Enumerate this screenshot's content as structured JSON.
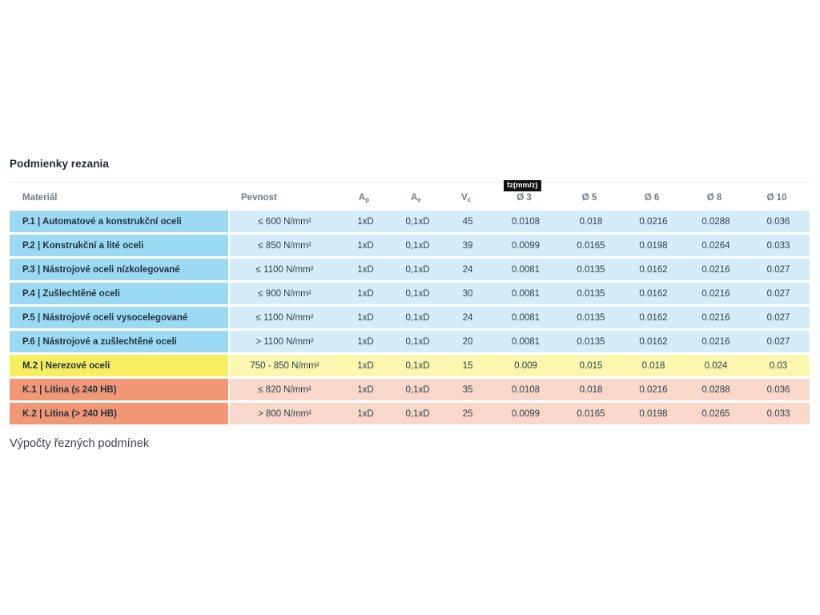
{
  "page": {
    "title": "Podmienky rezania",
    "footer_text": "Výpočty řezných podmínek"
  },
  "table": {
    "fz_tag": "fz(mm/z)",
    "headers": [
      {
        "label": "Materiál",
        "sub": ""
      },
      {
        "label": "Pevnost",
        "sub": ""
      },
      {
        "label": "A",
        "sub": "p"
      },
      {
        "label": "A",
        "sub": "e"
      },
      {
        "label": "V",
        "sub": "c"
      },
      {
        "label": "Ø 3",
        "sub": ""
      },
      {
        "label": "Ø 5",
        "sub": ""
      },
      {
        "label": "Ø 6",
        "sub": ""
      },
      {
        "label": "Ø 8",
        "sub": ""
      },
      {
        "label": "Ø 10",
        "sub": ""
      }
    ],
    "rows": [
      {
        "theme": "blue",
        "material": "P.1 | Automatové a konstrukční oceli",
        "values": [
          "≤ 600 N/mm²",
          "1xD",
          "0,1xD",
          "45",
          "0.0108",
          "0.018",
          "0.0216",
          "0.0288",
          "0.036"
        ]
      },
      {
        "theme": "blue",
        "material": "P.2 | Konstrukční a lité oceli",
        "values": [
          "≤ 850 N/mm²",
          "1xD",
          "0,1xD",
          "39",
          "0.0099",
          "0.0165",
          "0.0198",
          "0.0264",
          "0.033"
        ]
      },
      {
        "theme": "blue",
        "material": "P.3 | Nástrojové oceli nízkolegované",
        "values": [
          "≤ 1100 N/mm²",
          "1xD",
          "0,1xD",
          "24",
          "0.0081",
          "0.0135",
          "0.0162",
          "0.0216",
          "0.027"
        ]
      },
      {
        "theme": "blue",
        "material": "P.4 | Zušlechtěné oceli",
        "values": [
          "≤ 900 N/mm²",
          "1xD",
          "0,1xD",
          "30",
          "0.0081",
          "0.0135",
          "0.0162",
          "0.0216",
          "0.027"
        ]
      },
      {
        "theme": "blue",
        "material": "P.5 | Nástrojové oceli vysocelegované",
        "values": [
          "≤ 1100 N/mm²",
          "1xD",
          "0,1xD",
          "24",
          "0.0081",
          "0.0135",
          "0.0162",
          "0.0216",
          "0.027"
        ]
      },
      {
        "theme": "blue",
        "material": "P.6 | Nástrojové a zušlechtěné oceli",
        "values": [
          "> 1100 N/mm²",
          "1xD",
          "0,1xD",
          "20",
          "0.0081",
          "0.0135",
          "0.0162",
          "0.0216",
          "0.027"
        ]
      },
      {
        "theme": "yellow",
        "material": "M.2 | Nerezové oceli",
        "values": [
          "750 - 850 N/mm²",
          "1xD",
          "0,1xD",
          "15",
          "0.009",
          "0.015",
          "0.018",
          "0.024",
          "0.03"
        ]
      },
      {
        "theme": "orange",
        "material": "K.1 | Litina (≤ 240 HB)",
        "values": [
          "≤ 820 N/mm²",
          "1xD",
          "0,1xD",
          "35",
          "0.0108",
          "0.018",
          "0.0216",
          "0.0288",
          "0.036"
        ]
      },
      {
        "theme": "orange",
        "material": "K.2 | Litina (> 240 HB)",
        "values": [
          "> 800 N/mm²",
          "1xD",
          "0,1xD",
          "25",
          "0.0099",
          "0.0165",
          "0.0198",
          "0.0265",
          "0.033"
        ]
      }
    ]
  },
  "colors": {
    "blue_dark": "#9bdaf2",
    "blue_light": "#d5edf8",
    "yellow_dark": "#f6ee5f",
    "yellow_light": "#fbf7ae",
    "orange_dark": "#f29775",
    "orange_light": "#f8d8ca",
    "header_text": "#6f7b85",
    "body_text": "#31404b",
    "fz_tag_bg": "#101010",
    "fz_tag_text": "#ffffff"
  }
}
